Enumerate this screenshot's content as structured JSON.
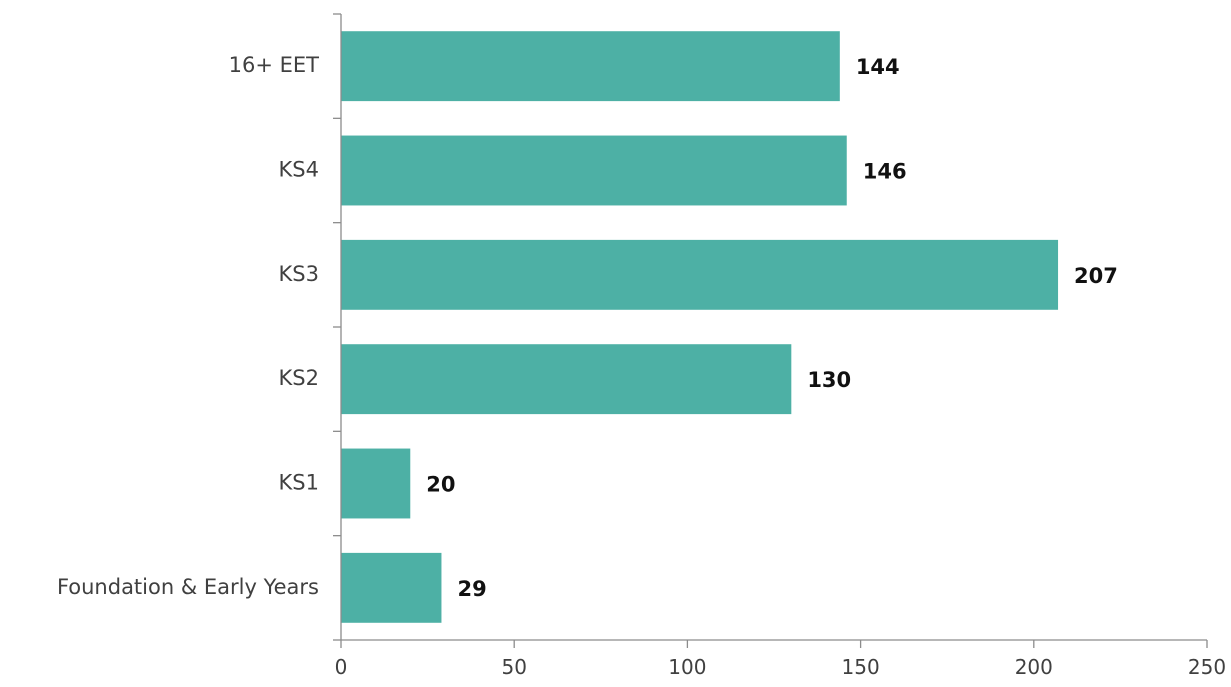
{
  "chart_data": {
    "type": "bar",
    "orientation": "horizontal",
    "categories": [
      "16+ EET",
      "KS4",
      "KS3",
      "KS2",
      "KS1",
      "Foundation & Early Years"
    ],
    "values": [
      144,
      146,
      207,
      130,
      20,
      29
    ],
    "data_labels": [
      "144",
      "146",
      "207",
      "130",
      "20",
      "29"
    ],
    "xticks": [
      0,
      50,
      100,
      150,
      200,
      250
    ],
    "xtick_labels": [
      "0",
      "50",
      "100",
      "150",
      "200",
      "250"
    ],
    "xlim": [
      0,
      250
    ],
    "title": "",
    "xlabel": "",
    "ylabel": "",
    "grid": false,
    "legend": "none",
    "bar_color": "#4db0a5",
    "axis_color": "#8c8c8c",
    "label_color": "#404040",
    "value_label_color": "#111111"
  }
}
